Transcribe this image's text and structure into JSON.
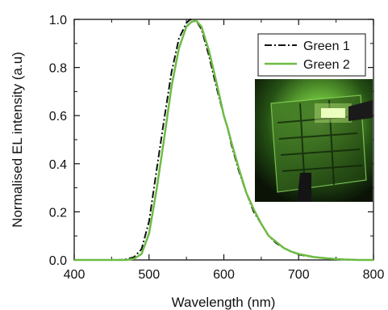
{
  "chart_data": {
    "type": "line",
    "title": "",
    "xlabel": "Wavelength (nm)",
    "ylabel": "Normalised EL intensity (a.u)",
    "xlim": [
      400,
      800
    ],
    "ylim": [
      0.0,
      1.0
    ],
    "x_ticks": [
      400,
      500,
      600,
      700,
      800
    ],
    "y_ticks": [
      "0.0",
      "0.2",
      "0.4",
      "0.6",
      "0.8",
      "1.0"
    ],
    "grid": false,
    "legend": "top-right",
    "series": [
      {
        "name": "Green 1",
        "color": "#111111",
        "style": "dash-dot",
        "points": [
          [
            400,
            0
          ],
          [
            460,
            0
          ],
          [
            470,
            0.003
          ],
          [
            480,
            0.012
          ],
          [
            490,
            0.045
          ],
          [
            500,
            0.16
          ],
          [
            510,
            0.37
          ],
          [
            520,
            0.58
          ],
          [
            530,
            0.78
          ],
          [
            540,
            0.92
          ],
          [
            550,
            0.985
          ],
          [
            555,
            1.0
          ],
          [
            560,
            0.995
          ],
          [
            565,
            0.985
          ],
          [
            570,
            0.96
          ],
          [
            580,
            0.85
          ],
          [
            590,
            0.72
          ],
          [
            600,
            0.6
          ],
          [
            605,
            0.55
          ],
          [
            610,
            0.48
          ],
          [
            620,
            0.37
          ],
          [
            630,
            0.28
          ],
          [
            640,
            0.2
          ],
          [
            650,
            0.15
          ],
          [
            660,
            0.1
          ],
          [
            670,
            0.07
          ],
          [
            680,
            0.05
          ],
          [
            690,
            0.035
          ],
          [
            700,
            0.022
          ],
          [
            720,
            0.012
          ],
          [
            740,
            0.006
          ],
          [
            760,
            0.002
          ],
          [
            780,
            0
          ],
          [
            800,
            0
          ]
        ]
      },
      {
        "name": "Green 2",
        "color": "#6dbb45",
        "style": "solid",
        "points": [
          [
            400,
            0
          ],
          [
            470,
            0
          ],
          [
            480,
            0.005
          ],
          [
            490,
            0.025
          ],
          [
            500,
            0.11
          ],
          [
            510,
            0.29
          ],
          [
            520,
            0.5
          ],
          [
            530,
            0.72
          ],
          [
            540,
            0.88
          ],
          [
            550,
            0.97
          ],
          [
            557,
            0.99
          ],
          [
            563,
            0.995
          ],
          [
            570,
            0.97
          ],
          [
            580,
            0.87
          ],
          [
            590,
            0.74
          ],
          [
            600,
            0.6
          ],
          [
            605,
            0.55
          ],
          [
            610,
            0.49
          ],
          [
            620,
            0.38
          ],
          [
            630,
            0.28
          ],
          [
            640,
            0.21
          ],
          [
            650,
            0.15
          ],
          [
            660,
            0.1
          ],
          [
            670,
            0.075
          ],
          [
            680,
            0.05
          ],
          [
            690,
            0.035
          ],
          [
            700,
            0.025
          ],
          [
            720,
            0.012
          ],
          [
            740,
            0.006
          ],
          [
            760,
            0.002
          ],
          [
            780,
            0
          ],
          [
            800,
            0
          ]
        ]
      }
    ]
  },
  "inset": {
    "description_icon": "device-photo-icon",
    "colors": {
      "glow": "#a8f06a",
      "dark": "#0e1a08",
      "mid": "#3f7a25"
    }
  }
}
